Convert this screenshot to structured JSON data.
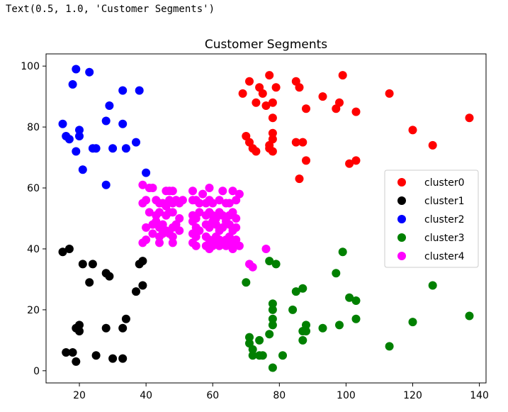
{
  "cell_output_text": "Text(0.5, 1.0, 'Customer Segments')",
  "chart_data": {
    "type": "scatter",
    "title": "Customer Segments",
    "xlabel": "",
    "ylabel": "",
    "xlim": [
      10,
      142
    ],
    "ylim": [
      -4,
      104
    ],
    "xticks": [
      20,
      40,
      60,
      80,
      100,
      120,
      140
    ],
    "yticks": [
      0,
      20,
      40,
      60,
      80,
      100
    ],
    "grid": false,
    "legend_position": "center-right",
    "series": [
      {
        "name": "cluster0",
        "color": "#ff0000",
        "points": [
          [
            69,
            91
          ],
          [
            71,
            95
          ],
          [
            74,
            93
          ],
          [
            77,
            97
          ],
          [
            85,
            95
          ],
          [
            79,
            93
          ],
          [
            73,
            88
          ],
          [
            75,
            91
          ],
          [
            76,
            87
          ],
          [
            78,
            88
          ],
          [
            86,
            93
          ],
          [
            88,
            86
          ],
          [
            78,
            83
          ],
          [
            93,
            90
          ],
          [
            97,
            86
          ],
          [
            99,
            97
          ],
          [
            98,
            88
          ],
          [
            103,
            85
          ],
          [
            113,
            91
          ],
          [
            137,
            83
          ],
          [
            120,
            79
          ],
          [
            126,
            74
          ],
          [
            70,
            77
          ],
          [
            71,
            75
          ],
          [
            78,
            78
          ],
          [
            72,
            73
          ],
          [
            73,
            72
          ],
          [
            77,
            74
          ],
          [
            78,
            76
          ],
          [
            77,
            73
          ],
          [
            78,
            72
          ],
          [
            85,
            75
          ],
          [
            87,
            75
          ],
          [
            86,
            63
          ],
          [
            88,
            69
          ],
          [
            101,
            68
          ],
          [
            103,
            69
          ]
        ]
      },
      {
        "name": "cluster1",
        "color": "#000000",
        "points": [
          [
            15,
            39
          ],
          [
            17,
            40
          ],
          [
            21,
            35
          ],
          [
            24,
            35
          ],
          [
            28,
            32
          ],
          [
            29,
            31
          ],
          [
            23,
            29
          ],
          [
            38,
            35
          ],
          [
            39,
            36
          ],
          [
            37,
            26
          ],
          [
            39,
            28
          ],
          [
            19,
            14
          ],
          [
            20,
            15
          ],
          [
            20,
            13
          ],
          [
            28,
            14
          ],
          [
            33,
            14
          ],
          [
            34,
            17
          ],
          [
            16,
            6
          ],
          [
            18,
            6
          ],
          [
            19,
            3
          ],
          [
            25,
            5
          ],
          [
            30,
            4
          ],
          [
            33,
            4
          ]
        ]
      },
      {
        "name": "cluster2",
        "color": "#0000ff",
        "points": [
          [
            19,
            99
          ],
          [
            23,
            98
          ],
          [
            18,
            94
          ],
          [
            33,
            92
          ],
          [
            38,
            92
          ],
          [
            29,
            87
          ],
          [
            15,
            81
          ],
          [
            16,
            77
          ],
          [
            17,
            76
          ],
          [
            20,
            79
          ],
          [
            20,
            77
          ],
          [
            28,
            82
          ],
          [
            33,
            81
          ],
          [
            19,
            72
          ],
          [
            24,
            73
          ],
          [
            25,
            73
          ],
          [
            30,
            73
          ],
          [
            34,
            73
          ],
          [
            37,
            75
          ],
          [
            21,
            66
          ],
          [
            28,
            61
          ],
          [
            40,
            65
          ]
        ]
      },
      {
        "name": "cluster3",
        "color": "#008000",
        "points": [
          [
            70,
            29
          ],
          [
            77,
            36
          ],
          [
            79,
            35
          ],
          [
            99,
            39
          ],
          [
            97,
            32
          ],
          [
            85,
            26
          ],
          [
            87,
            27
          ],
          [
            101,
            24
          ],
          [
            103,
            23
          ],
          [
            126,
            28
          ],
          [
            78,
            22
          ],
          [
            78,
            20
          ],
          [
            78,
            17
          ],
          [
            78,
            15
          ],
          [
            84,
            20
          ],
          [
            88,
            15
          ],
          [
            87,
            13
          ],
          [
            88,
            13
          ],
          [
            93,
            14
          ],
          [
            98,
            15
          ],
          [
            103,
            17
          ],
          [
            120,
            16
          ],
          [
            137,
            18
          ],
          [
            71,
            11
          ],
          [
            71,
            9
          ],
          [
            74,
            10
          ],
          [
            77,
            12
          ],
          [
            72,
            7
          ],
          [
            72,
            5
          ],
          [
            74,
            5
          ],
          [
            75,
            5
          ],
          [
            81,
            5
          ],
          [
            87,
            10
          ],
          [
            113,
            8
          ],
          [
            78,
            1
          ]
        ]
      },
      {
        "name": "cluster4",
        "color": "#ff00ff",
        "points": [
          [
            39,
            61
          ],
          [
            41,
            60
          ],
          [
            42,
            60
          ],
          [
            46,
            59
          ],
          [
            47,
            59
          ],
          [
            48,
            59
          ],
          [
            54,
            59
          ],
          [
            57,
            58
          ],
          [
            59,
            60
          ],
          [
            63,
            59
          ],
          [
            66,
            59
          ],
          [
            68,
            58
          ],
          [
            39,
            55
          ],
          [
            40,
            56
          ],
          [
            43,
            56
          ],
          [
            44,
            55
          ],
          [
            45,
            55
          ],
          [
            46,
            54
          ],
          [
            47,
            56
          ],
          [
            48,
            55
          ],
          [
            49,
            56
          ],
          [
            50,
            55
          ],
          [
            51,
            56
          ],
          [
            54,
            56
          ],
          [
            55,
            56
          ],
          [
            56,
            55
          ],
          [
            58,
            55
          ],
          [
            59,
            56
          ],
          [
            60,
            55
          ],
          [
            62,
            56
          ],
          [
            64,
            55
          ],
          [
            65,
            55
          ],
          [
            67,
            56
          ],
          [
            41,
            52
          ],
          [
            43,
            51
          ],
          [
            44,
            52
          ],
          [
            46,
            51
          ],
          [
            47,
            52
          ],
          [
            48,
            52
          ],
          [
            50,
            50
          ],
          [
            54,
            51
          ],
          [
            55,
            50
          ],
          [
            56,
            52
          ],
          [
            58,
            51
          ],
          [
            59,
            52
          ],
          [
            60,
            51
          ],
          [
            61,
            50
          ],
          [
            62,
            52
          ],
          [
            63,
            51
          ],
          [
            64,
            50
          ],
          [
            65,
            51
          ],
          [
            66,
            52
          ],
          [
            67,
            50
          ],
          [
            40,
            47
          ],
          [
            42,
            48
          ],
          [
            43,
            49
          ],
          [
            44,
            47
          ],
          [
            45,
            48
          ],
          [
            46,
            46
          ],
          [
            48,
            47
          ],
          [
            49,
            48
          ],
          [
            50,
            46
          ],
          [
            54,
            49
          ],
          [
            55,
            47
          ],
          [
            56,
            46
          ],
          [
            58,
            48
          ],
          [
            59,
            47
          ],
          [
            60,
            49
          ],
          [
            61,
            48
          ],
          [
            62,
            46
          ],
          [
            63,
            47
          ],
          [
            64,
            49
          ],
          [
            65,
            48
          ],
          [
            66,
            46
          ],
          [
            67,
            47
          ],
          [
            42,
            45
          ],
          [
            44,
            44
          ],
          [
            45,
            45
          ],
          [
            47,
            45
          ],
          [
            48,
            44
          ],
          [
            54,
            45
          ],
          [
            55,
            44
          ],
          [
            58,
            44
          ],
          [
            59,
            43
          ],
          [
            60,
            42
          ],
          [
            61,
            44
          ],
          [
            62,
            43
          ],
          [
            63,
            42
          ],
          [
            64,
            43
          ],
          [
            65,
            44
          ],
          [
            66,
            42
          ],
          [
            67,
            43
          ],
          [
            39,
            42
          ],
          [
            40,
            43
          ],
          [
            44,
            42
          ],
          [
            48,
            42
          ],
          [
            54,
            42
          ],
          [
            55,
            41
          ],
          [
            58,
            41
          ],
          [
            59,
            40
          ],
          [
            60,
            41
          ],
          [
            62,
            41
          ],
          [
            64,
            41
          ],
          [
            66,
            40
          ],
          [
            68,
            41
          ],
          [
            76,
            40
          ],
          [
            71,
            35
          ],
          [
            72,
            34
          ]
        ]
      }
    ]
  }
}
